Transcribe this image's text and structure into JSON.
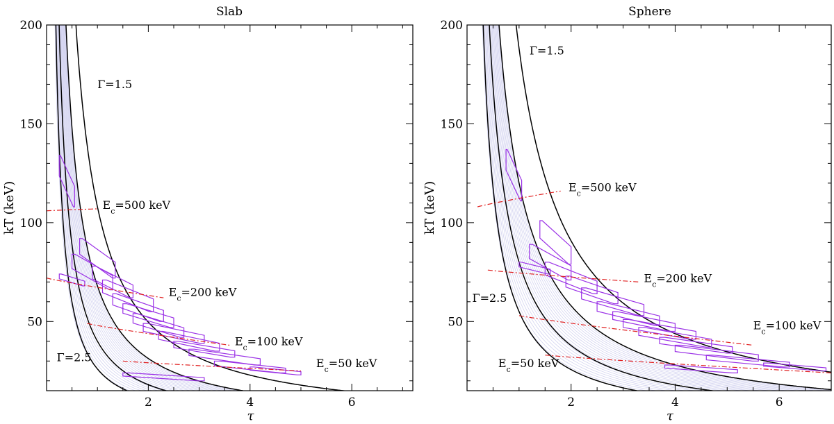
{
  "chart_data": [
    {
      "type": "line",
      "title": "Slab",
      "xlabel": "τ",
      "ylabel": "kT (keV)",
      "xlim": [
        0,
        7.2
      ],
      "ylim": [
        15,
        200
      ],
      "xticks": [
        2,
        4,
        6
      ],
      "yticks": [
        50,
        100,
        150,
        200
      ],
      "gamma_curves": [
        {
          "label": "Γ=1.5",
          "A": 108,
          "p": 1.12
        },
        {
          "label": "",
          "A": 68,
          "p": 1.12
        },
        {
          "label": "",
          "A": 40,
          "p": 1.15
        },
        {
          "label": "Γ=2.5",
          "A": 26,
          "p": 1.2
        }
      ],
      "ec_curves": [
        {
          "label": "500 keV",
          "x": [
            0,
            1.0
          ],
          "y": [
            106,
            107
          ]
        },
        {
          "label": "200 keV",
          "x": [
            0,
            2.3
          ],
          "y": [
            72,
            62
          ]
        },
        {
          "label": "100 keV",
          "x": [
            0.8,
            3.6
          ],
          "y": [
            49,
            38
          ]
        },
        {
          "label": "50 keV",
          "x": [
            1.5,
            5.0
          ],
          "y": [
            30,
            25
          ]
        }
      ],
      "boxes": [
        {
          "tau": 0.4,
          "kT": 121,
          "dtau": 0.15,
          "dkT": 13
        },
        {
          "tau": 1.0,
          "kT": 82,
          "dtau": 0.35,
          "dkT": 10
        },
        {
          "tau": 0.9,
          "kT": 75,
          "dtau": 0.4,
          "dkT": 9
        },
        {
          "tau": 1.3,
          "kT": 70,
          "dtau": 0.4,
          "dkT": 8
        },
        {
          "tau": 1.6,
          "kT": 63,
          "dtau": 0.5,
          "dkT": 8
        },
        {
          "tau": 1.8,
          "kT": 57,
          "dtau": 0.5,
          "dkT": 7
        },
        {
          "tau": 2.0,
          "kT": 53,
          "dtau": 0.5,
          "dkT": 6
        },
        {
          "tau": 2.2,
          "kT": 48,
          "dtau": 0.5,
          "dkT": 6
        },
        {
          "tau": 2.5,
          "kT": 44,
          "dtau": 0.6,
          "dkT": 5
        },
        {
          "tau": 2.8,
          "kT": 40,
          "dtau": 0.6,
          "dkT": 5
        },
        {
          "tau": 3.1,
          "kT": 36,
          "dtau": 0.6,
          "dkT": 4
        },
        {
          "tau": 3.5,
          "kT": 32,
          "dtau": 0.7,
          "dkT": 4
        },
        {
          "tau": 4.0,
          "kT": 27,
          "dtau": 0.7,
          "dkT": 3
        },
        {
          "tau": 4.5,
          "kT": 25,
          "dtau": 0.5,
          "dkT": 2
        },
        {
          "tau": 2.3,
          "kT": 22,
          "dtau": 0.8,
          "dkT": 2
        },
        {
          "tau": 0.5,
          "kT": 71,
          "dtau": 0.25,
          "dkT": 3
        }
      ],
      "annotations": [
        {
          "text": "Γ=1.5",
          "tau": 1.0,
          "kT": 168
        },
        {
          "text": "Γ=2.5",
          "tau": 0.2,
          "kT": 30
        },
        {
          "text": "E",
          "sub": "c",
          "rest": "=500 keV",
          "tau": 1.1,
          "kT": 107
        },
        {
          "text": "E",
          "sub": "c",
          "rest": "=200 keV",
          "tau": 2.4,
          "kT": 63
        },
        {
          "text": "E",
          "sub": "c",
          "rest": "=100 keV",
          "tau": 3.7,
          "kT": 38
        },
        {
          "text": "E",
          "sub": "c",
          "rest": "=50 keV",
          "tau": 5.3,
          "kT": 27
        }
      ]
    },
    {
      "type": "line",
      "title": "Sphere",
      "xlabel": "τ",
      "ylabel": "kT (keV)",
      "xlim": [
        0,
        7.0
      ],
      "ylim": [
        15,
        200
      ],
      "xticks": [
        2,
        4,
        6
      ],
      "yticks": [
        50,
        100,
        150,
        200
      ],
      "gamma_curves": [
        {
          "label": "Γ=1.5",
          "A": 188,
          "p": 1.05
        },
        {
          "label": "",
          "A": 120,
          "p": 1.05
        },
        {
          "label": "",
          "A": 80,
          "p": 1.08
        },
        {
          "label": "Γ=2.5",
          "A": 55,
          "p": 1.1
        }
      ],
      "ec_curves": [
        {
          "label": "500 keV",
          "x": [
            0.2,
            1.8
          ],
          "y": [
            108,
            116
          ]
        },
        {
          "label": "200 keV",
          "x": [
            0.4,
            3.3
          ],
          "y": [
            76,
            70
          ]
        },
        {
          "label": "100 keV",
          "x": [
            1.0,
            5.5
          ],
          "y": [
            53,
            38
          ]
        },
        {
          "label": "50 keV",
          "x": [
            1.5,
            7.0
          ],
          "y": [
            33,
            24
          ]
        }
      ],
      "boxes": [
        {
          "tau": 0.9,
          "kT": 124,
          "dtau": 0.15,
          "dkT": 13
        },
        {
          "tau": 1.7,
          "kT": 90,
          "dtau": 0.3,
          "dkT": 11
        },
        {
          "tau": 1.6,
          "kT": 80,
          "dtau": 0.4,
          "dkT": 9
        },
        {
          "tau": 2.0,
          "kT": 72,
          "dtau": 0.5,
          "dkT": 8
        },
        {
          "tau": 2.4,
          "kT": 66,
          "dtau": 0.5,
          "dkT": 7
        },
        {
          "tau": 2.8,
          "kT": 60,
          "dtau": 0.6,
          "dkT": 7
        },
        {
          "tau": 3.1,
          "kT": 54,
          "dtau": 0.6,
          "dkT": 6
        },
        {
          "tau": 3.4,
          "kT": 50,
          "dtau": 0.6,
          "dkT": 5
        },
        {
          "tau": 3.7,
          "kT": 46,
          "dtau": 0.7,
          "dkT": 5
        },
        {
          "tau": 4.0,
          "kT": 42,
          "dtau": 0.7,
          "dkT": 5
        },
        {
          "tau": 4.4,
          "kT": 38,
          "dtau": 0.7,
          "dkT": 4
        },
        {
          "tau": 4.8,
          "kT": 34,
          "dtau": 0.8,
          "dkT": 4
        },
        {
          "tau": 5.4,
          "kT": 30,
          "dtau": 0.8,
          "dkT": 3
        },
        {
          "tau": 6.3,
          "kT": 27,
          "dtau": 0.6,
          "dkT": 2
        },
        {
          "tau": 1.3,
          "kT": 77,
          "dtau": 0.3,
          "dkT": 3
        },
        {
          "tau": 4.5,
          "kT": 26,
          "dtau": 0.7,
          "dkT": 2
        }
      ],
      "annotations": [
        {
          "text": "Γ=1.5",
          "tau": 1.2,
          "kT": 185
        },
        {
          "text": "Γ=2.5",
          "tau": 0.1,
          "kT": 60
        },
        {
          "text": "E",
          "sub": "c",
          "rest": "=500 keV",
          "tau": 1.95,
          "kT": 116
        },
        {
          "text": "E",
          "sub": "c",
          "rest": "=200 keV",
          "tau": 3.4,
          "kT": 70
        },
        {
          "text": "E",
          "sub": "c",
          "rest": "=100 keV",
          "tau": 5.5,
          "kT": 46
        },
        {
          "text": "E",
          "sub": "c",
          "rest": "=50 keV",
          "tau": 0.6,
          "kT": 27
        }
      ]
    }
  ]
}
